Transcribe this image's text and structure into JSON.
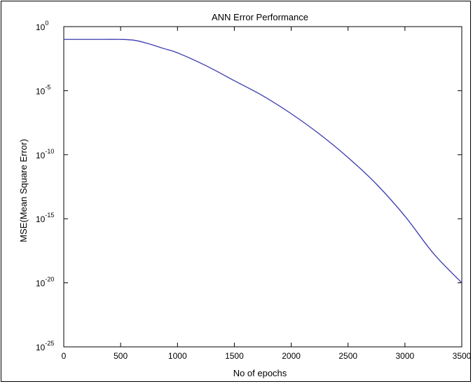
{
  "chart_data": {
    "type": "line",
    "title": "ANN Error Performance",
    "xlabel": "No of epochs",
    "ylabel": "MSE(Mean Square Error)",
    "xlim": [
      0,
      3500
    ],
    "ylim": [
      1e-25,
      1
    ],
    "yscale": "log",
    "xticks": [
      0,
      500,
      1000,
      1500,
      2000,
      2500,
      3000,
      3500
    ],
    "xtick_labels": [
      "0",
      "500",
      "1000",
      "1500",
      "2000",
      "2500",
      "3000",
      "3500"
    ],
    "yticks": [
      1e-25,
      1e-20,
      1e-15,
      1e-10,
      1e-05,
      1
    ],
    "ytick_labels": [
      {
        "base": "10",
        "exp": "-25"
      },
      {
        "base": "10",
        "exp": "-20"
      },
      {
        "base": "10",
        "exp": "-15"
      },
      {
        "base": "10",
        "exp": "-10"
      },
      {
        "base": "10",
        "exp": "-5"
      },
      {
        "base": "10",
        "exp": "0"
      }
    ],
    "grid": false,
    "series": [
      {
        "color": "#3b3bb0",
        "x": [
          0,
          250,
          500,
          625,
          750,
          875,
          1000,
          1250,
          1500,
          1750,
          2000,
          2250,
          2500,
          2750,
          3000,
          3250,
          3500
        ],
        "y": [
          0.1,
          0.1,
          0.1,
          0.085,
          0.045,
          0.02,
          0.009,
          0.0009,
          6e-05,
          4e-06,
          1.6e-07,
          4e-09,
          6e-11,
          5e-13,
          1.6e-15,
          2e-18,
          1e-20
        ]
      }
    ]
  }
}
